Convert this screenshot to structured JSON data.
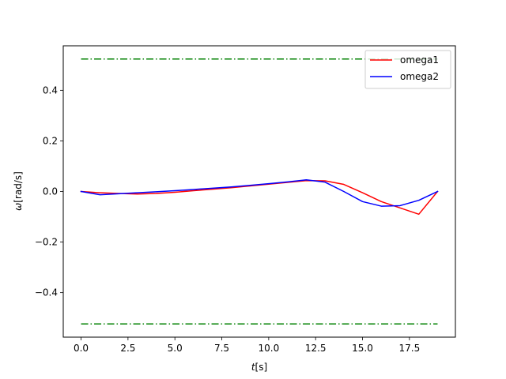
{
  "chart_data": {
    "type": "line",
    "xlabel_italic": "t",
    "xlabel_unit": "[s]",
    "ylabel_italic": "ω",
    "ylabel_unit": "[rad/s]",
    "xlim": [
      -0.95,
      19.95
    ],
    "ylim": [
      -0.5759,
      0.5759
    ],
    "xticks": [
      0.0,
      2.5,
      5.0,
      7.5,
      10.0,
      12.5,
      15.0,
      17.5
    ],
    "xtick_labels": [
      "0.0",
      "2.5",
      "5.0",
      "7.5",
      "10.0",
      "12.5",
      "15.0",
      "17.5"
    ],
    "yticks": [
      -0.4,
      -0.2,
      0.0,
      0.2,
      0.4
    ],
    "ytick_labels": [
      "−0.4",
      "−0.2",
      "0.0",
      "0.2",
      "0.4"
    ],
    "grid": false,
    "legend_position": "top-right",
    "bounds": [
      {
        "y": 0.5236,
        "x": [
          0,
          19
        ],
        "color": "#008000",
        "style": "dashdot"
      },
      {
        "y": -0.5236,
        "x": [
          0,
          19
        ],
        "color": "#008000",
        "style": "dashdot"
      }
    ],
    "series": [
      {
        "name": "omega1",
        "color": "#ff0000",
        "x": [
          0,
          1,
          2,
          3,
          4,
          5,
          6,
          7,
          8,
          9,
          10,
          11,
          12,
          13,
          14,
          15,
          16,
          17,
          18,
          19
        ],
        "y": [
          0.0,
          -0.005,
          -0.008,
          -0.01,
          -0.008,
          -0.003,
          0.003,
          0.009,
          0.015,
          0.022,
          0.029,
          0.036,
          0.043,
          0.042,
          0.028,
          -0.005,
          -0.04,
          -0.065,
          -0.09,
          0.0
        ]
      },
      {
        "name": "omega2",
        "color": "#0000ff",
        "x": [
          0,
          1,
          2,
          3,
          4,
          5,
          6,
          7,
          8,
          9,
          10,
          11,
          12,
          13,
          14,
          15,
          16,
          17,
          18,
          19
        ],
        "y": [
          0.0,
          -0.013,
          -0.009,
          -0.005,
          -0.001,
          0.003,
          0.008,
          0.013,
          0.018,
          0.024,
          0.031,
          0.038,
          0.046,
          0.037,
          0.0,
          -0.04,
          -0.058,
          -0.056,
          -0.035,
          0.0
        ]
      }
    ]
  }
}
